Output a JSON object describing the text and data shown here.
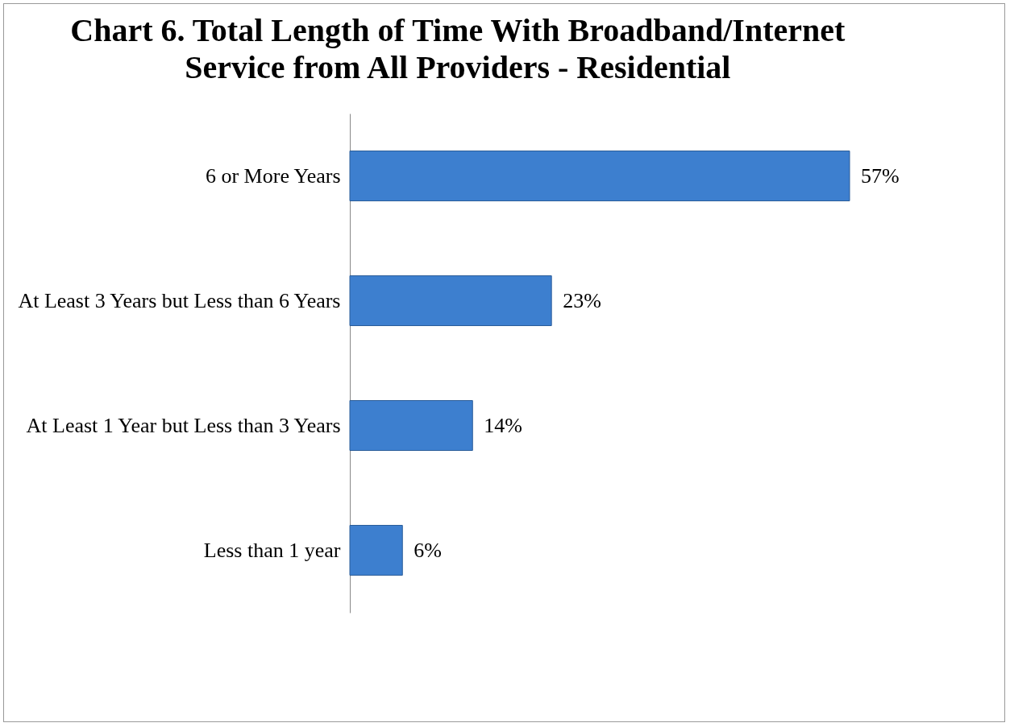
{
  "chart_data": {
    "type": "bar",
    "orientation": "horizontal",
    "title": "Chart 6. Total Length of Time With Broadband/Internet Service from All Providers - Residential",
    "categories": [
      "6 or More Years",
      "At Least 3 Years but Less than 6 Years",
      "At Least 1 Year but Less than 3 Years",
      "Less than 1 year"
    ],
    "values": [
      57,
      23,
      14,
      6
    ],
    "value_labels": [
      "57%",
      "23%",
      "14%",
      "6%"
    ],
    "color": "#3d7fcf"
  }
}
